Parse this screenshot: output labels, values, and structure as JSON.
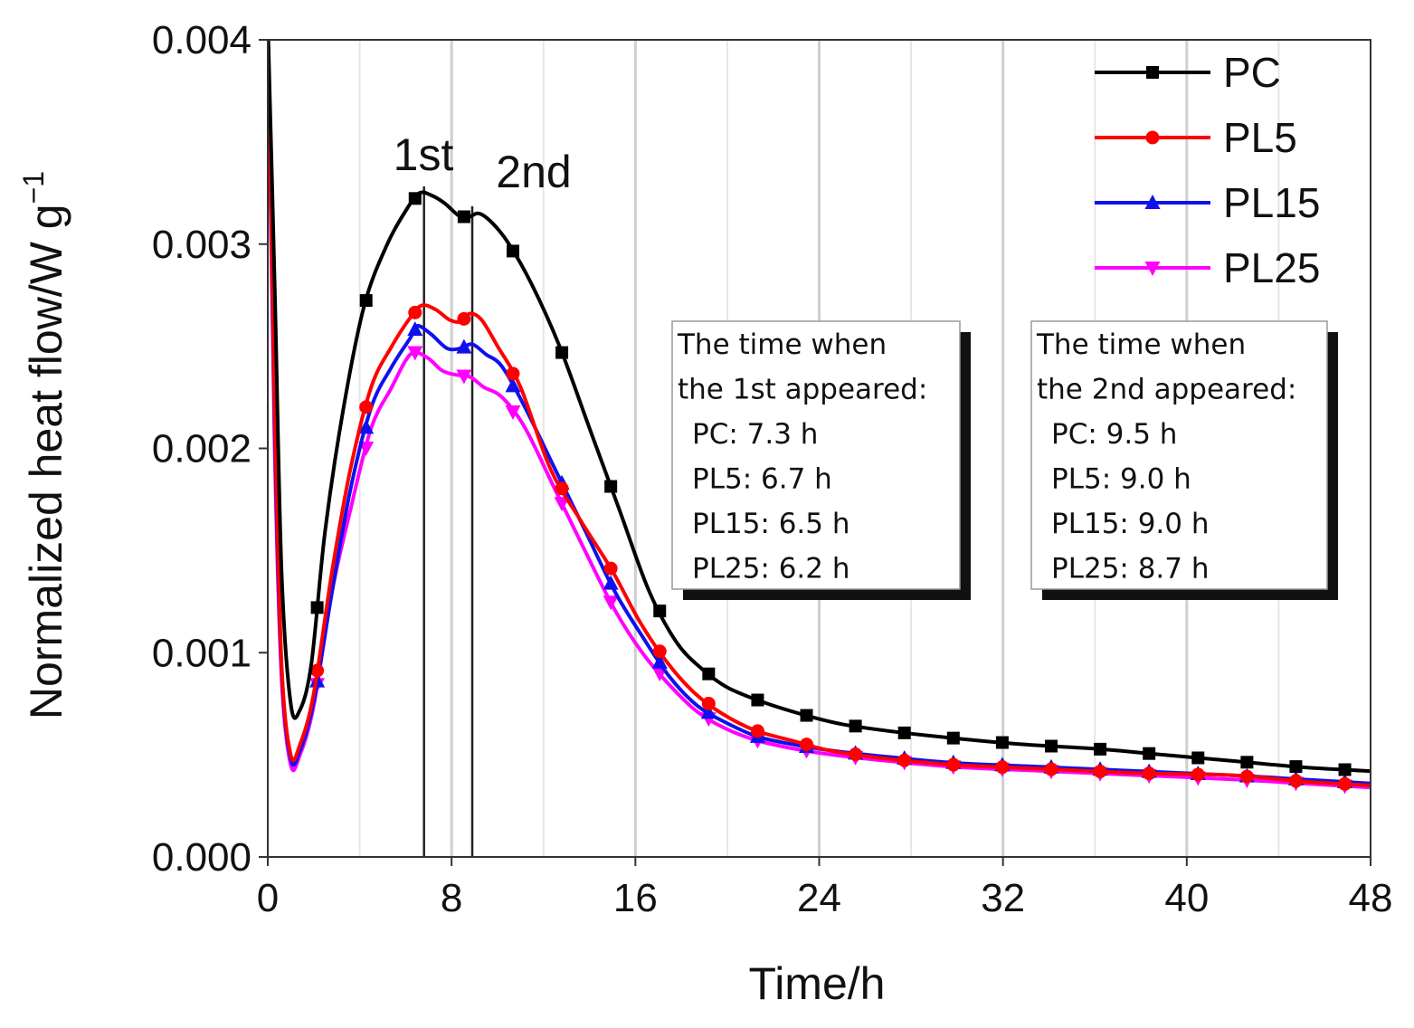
{
  "chart_data": {
    "type": "line",
    "title": "",
    "xlabel": "Time/h",
    "ylabel": "Normalized heat flow/W g",
    "ylabel_sup": "−1",
    "xlim": [
      0,
      48
    ],
    "ylim": [
      0,
      0.004
    ],
    "xticks": [
      "0",
      "8",
      "16",
      "24",
      "32",
      "40",
      "48"
    ],
    "yticks": [
      "0.000",
      "0.001",
      "0.002",
      "0.003",
      "0.004"
    ],
    "grid": "vertical",
    "legend_position": "top-right",
    "peak_labels": {
      "first": "1st",
      "second": "2nd"
    },
    "peak_lines_x": [
      6.8,
      8.9
    ],
    "series": [
      {
        "name": "PC",
        "color": "#000000",
        "marker": "square",
        "x": [
          0,
          0.3,
          0.6,
          1.0,
          1.4,
          1.9,
          2.5,
          3.3,
          4.2,
          5.2,
          6.1,
          6.6,
          7.1,
          7.7,
          8.3,
          8.7,
          9.2,
          9.8,
          10.5,
          11.5,
          12.7,
          14.0,
          15.3,
          16.6,
          17.8,
          18.9,
          20.0,
          21.5,
          23.2,
          25.0,
          27.5,
          30.0,
          33.0,
          36.0,
          39.0,
          42.0,
          45.0,
          48.0
        ],
        "y": [
          0.0041,
          0.0028,
          0.0014,
          0.00075,
          0.00072,
          0.00095,
          0.0016,
          0.0022,
          0.0027,
          0.003,
          0.00318,
          0.00325,
          0.00324,
          0.0032,
          0.00314,
          0.00313,
          0.00315,
          0.0031,
          0.003,
          0.0028,
          0.0025,
          0.0021,
          0.0017,
          0.0013,
          0.00105,
          0.00092,
          0.00083,
          0.00076,
          0.0007,
          0.00065,
          0.00061,
          0.00058,
          0.00055,
          0.00053,
          0.0005,
          0.00047,
          0.00044,
          0.00042
        ]
      },
      {
        "name": "PL5",
        "color": "#ff0000",
        "marker": "circle",
        "x": [
          0,
          0.3,
          0.6,
          1.0,
          1.4,
          2.0,
          2.8,
          3.6,
          4.5,
          5.4,
          6.2,
          6.7,
          7.3,
          7.9,
          8.4,
          8.8,
          9.3,
          10.0,
          11.0,
          12.3,
          13.6,
          15.0,
          16.2,
          17.4,
          18.6,
          19.8,
          21.2,
          22.8,
          24.5,
          27.0,
          30.0,
          34.0,
          38.0,
          42.0,
          45.0,
          48.0
        ],
        "y": [
          0.0041,
          0.0022,
          0.00095,
          0.0005,
          0.00055,
          0.0008,
          0.0014,
          0.0019,
          0.0023,
          0.0025,
          0.00264,
          0.0027,
          0.00268,
          0.00263,
          0.00262,
          0.00266,
          0.00263,
          0.0025,
          0.0023,
          0.0019,
          0.00165,
          0.0014,
          0.00115,
          0.00095,
          0.0008,
          0.0007,
          0.00062,
          0.00057,
          0.00052,
          0.00048,
          0.00045,
          0.00043,
          0.00041,
          0.0004,
          0.00037,
          0.00035
        ]
      },
      {
        "name": "PL15",
        "color": "#1010ee",
        "marker": "triangle-up",
        "x": [
          0,
          0.3,
          0.6,
          1.0,
          1.4,
          2.0,
          2.8,
          3.6,
          4.5,
          5.4,
          6.2,
          6.5,
          7.1,
          7.8,
          8.4,
          8.9,
          9.5,
          10.2,
          11.2,
          12.5,
          13.8,
          15.1,
          16.3,
          17.5,
          18.7,
          19.9,
          21.3,
          22.9,
          24.6,
          27.0,
          30.0,
          34.0,
          38.0,
          42.0,
          45.0,
          48.0
        ],
        "y": [
          0.0041,
          0.0021,
          0.00092,
          0.00048,
          0.00052,
          0.00076,
          0.0013,
          0.0018,
          0.0022,
          0.0024,
          0.00254,
          0.0026,
          0.00256,
          0.00249,
          0.00249,
          0.00251,
          0.00246,
          0.0024,
          0.0022,
          0.0019,
          0.0016,
          0.0013,
          0.00108,
          0.00088,
          0.00074,
          0.00066,
          0.00059,
          0.00055,
          0.00052,
          0.00049,
          0.00046,
          0.00044,
          0.00042,
          0.0004,
          0.00038,
          0.00036
        ]
      },
      {
        "name": "PL25",
        "color": "#ff00ff",
        "marker": "triangle-down",
        "x": [
          0,
          0.3,
          0.6,
          1.0,
          1.4,
          2.0,
          2.8,
          3.6,
          4.5,
          5.4,
          6.0,
          6.4,
          7.0,
          7.6,
          8.2,
          8.8,
          9.4,
          10.2,
          11.2,
          12.5,
          13.8,
          15.1,
          16.3,
          17.5,
          18.7,
          19.9,
          21.3,
          22.9,
          24.6,
          27.0,
          30.0,
          34.0,
          38.0,
          42.0,
          45.0,
          48.0
        ],
        "y": [
          0.0041,
          0.002,
          0.00088,
          0.00045,
          0.0005,
          0.00074,
          0.0013,
          0.0017,
          0.0021,
          0.0023,
          0.00243,
          0.00247,
          0.00244,
          0.00238,
          0.00236,
          0.00235,
          0.0023,
          0.00225,
          0.0021,
          0.0018,
          0.0015,
          0.00121,
          0.001,
          0.00084,
          0.00071,
          0.00063,
          0.00057,
          0.00053,
          0.0005,
          0.00047,
          0.00044,
          0.00042,
          0.0004,
          0.00038,
          0.00036,
          0.00034
        ]
      }
    ],
    "annotations": [
      {
        "name": "first-peak-times",
        "lines": [
          "The time when",
          "the 1st appeared:",
          "PC: 7.3 h",
          "PL5: 6.7 h",
          "PL15: 6.5 h",
          "PL25: 6.2 h"
        ]
      },
      {
        "name": "second-peak-times",
        "lines": [
          "The time when",
          "the 2nd appeared:",
          "PC: 9.5 h",
          "PL5: 9.0 h",
          "PL15: 9.0 h",
          "PL25: 8.7 h"
        ]
      }
    ]
  }
}
